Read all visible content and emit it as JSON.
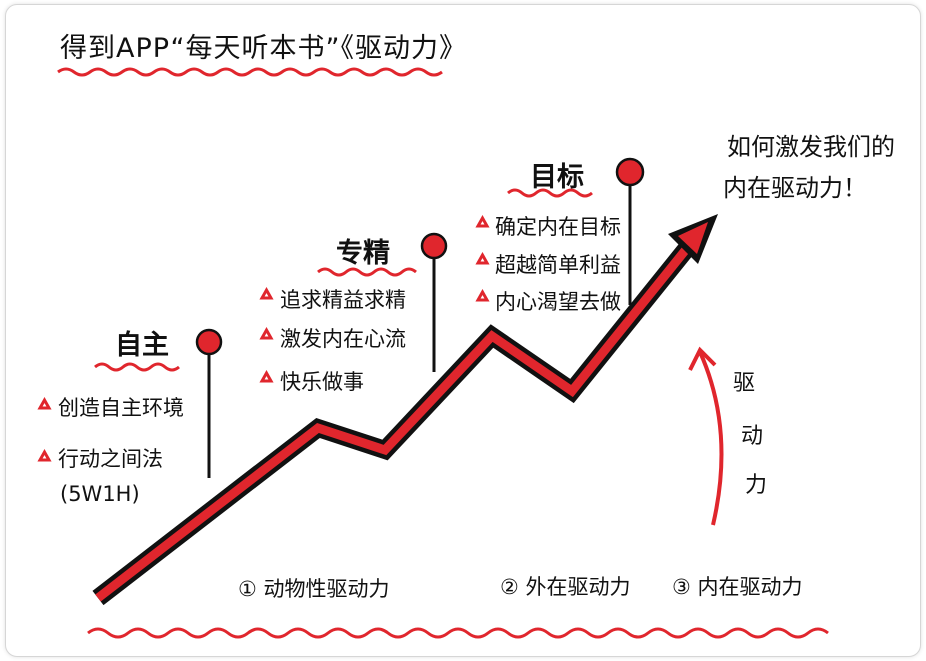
{
  "title": "得到APP“每天听本书”《驱动力》",
  "stages": [
    {
      "heading": "自主",
      "items": [
        "创造自主环境",
        "行动之间法",
        "(5W1H)"
      ]
    },
    {
      "heading": "专精",
      "items": [
        "追求精益求精",
        "激发内在心流",
        "快乐做事"
      ]
    },
    {
      "heading": "目标",
      "items": [
        "确定内在目标",
        "超越简单利益",
        "内心渴望去做"
      ]
    }
  ],
  "goal_note": {
    "line1": "如何激发我们的",
    "line2": "内在驱动力！"
  },
  "side_label": [
    "驱",
    "动",
    "力"
  ],
  "drive_types": [
    "① 动物性驱动力",
    "② 外在驱动力",
    "③ 内在驱动力"
  ],
  "colors": {
    "accent": "#e0262d",
    "ink": "#111111"
  },
  "icons": {
    "bullet": "triangle-icon",
    "marker": "red-pin-icon"
  }
}
